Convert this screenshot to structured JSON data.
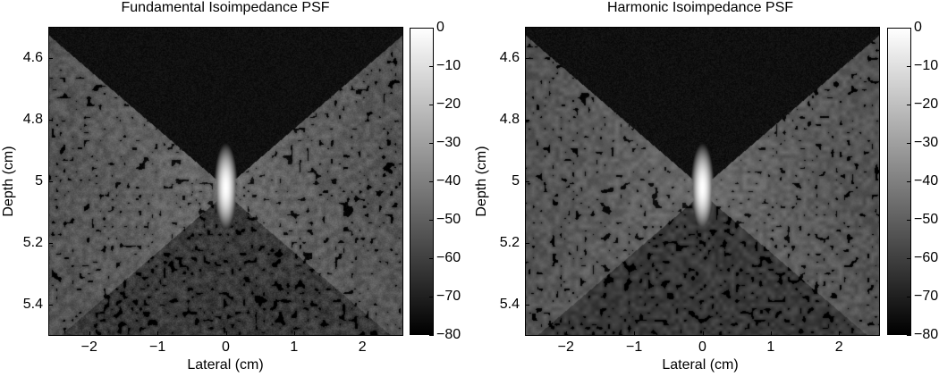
{
  "chart_data": [
    {
      "type": "heatmap",
      "title": "Fundamental Isoimpedance PSF",
      "xlabel": "Lateral (cm)",
      "ylabel": "Depth (cm)",
      "xlim": [
        -2.6,
        2.6
      ],
      "ylim": [
        4.5,
        5.5
      ],
      "y_reversed": true,
      "x_ticks": [
        "−2",
        "−1",
        "0",
        "1",
        "2"
      ],
      "x_tick_values": [
        -2,
        -1,
        0,
        1,
        2
      ],
      "y_ticks": [
        "4.6",
        "4.8",
        "5",
        "5.2",
        "5.4"
      ],
      "y_tick_values": [
        4.6,
        4.8,
        5.0,
        5.2,
        5.4
      ],
      "colorbar": {
        "range": [
          -80,
          0
        ],
        "colormap": "gray",
        "ticks": [
          "0",
          "−10",
          "−20",
          "−30",
          "−40",
          "−50",
          "−60",
          "−70",
          "−80"
        ],
        "tick_values": [
          0,
          -10,
          -20,
          -30,
          -40,
          -50,
          -60,
          -70,
          -80
        ]
      },
      "focus": {
        "lateral": 0,
        "depth": 5.02
      },
      "peak_value": 0
    },
    {
      "type": "heatmap",
      "title": "Harmonic Isoimpedance PSF",
      "xlabel": "Lateral (cm)",
      "ylabel": "Depth (cm)",
      "xlim": [
        -2.6,
        2.6
      ],
      "ylim": [
        4.5,
        5.5
      ],
      "y_reversed": true,
      "x_ticks": [
        "−2",
        "−1",
        "0",
        "1",
        "2"
      ],
      "x_tick_values": [
        -2,
        -1,
        0,
        1,
        2
      ],
      "y_ticks": [
        "4.6",
        "4.8",
        "5",
        "5.2",
        "5.4"
      ],
      "y_tick_values": [
        4.6,
        4.8,
        5.0,
        5.2,
        5.4
      ],
      "colorbar": {
        "range": [
          -80,
          0
        ],
        "colormap": "gray",
        "ticks": [
          "0",
          "−10",
          "−20",
          "−30",
          "−40",
          "−50",
          "−60",
          "−70",
          "−80"
        ],
        "tick_values": [
          0,
          -10,
          -20,
          -30,
          -40,
          -50,
          -60,
          -70,
          -80
        ]
      },
      "focus": {
        "lateral": 0,
        "depth": 5.02
      },
      "peak_value": 0
    }
  ]
}
